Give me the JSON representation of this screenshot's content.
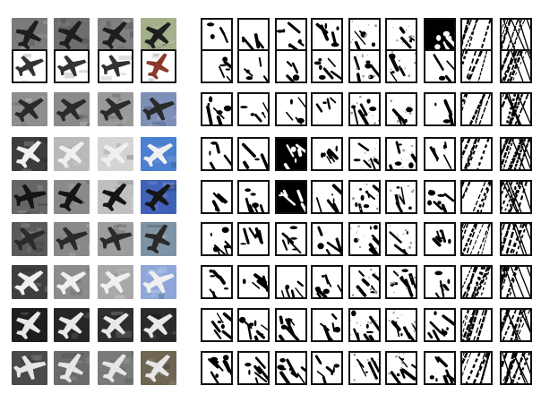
{
  "figure": {
    "rows": [
      {
        "photo_tones": [
          "#7a7a7a",
          "#6e6e6e",
          "#808080",
          "#a3b08a"
        ],
        "plane_tone": "#1e1e1e"
      },
      {
        "photo_tones": [
          "#ffffff",
          "#ffffff",
          "#ffffff",
          "#ffffff"
        ],
        "plane_tone": "#333333",
        "accent": "#8a3a2a"
      },
      {
        "photo_tones": [
          "#8e8e8e",
          "#8a8a8a",
          "#999999",
          "#7f90b8"
        ],
        "plane_tone": "#2a2a2a"
      },
      {
        "photo_tones": [
          "#3c3c3c",
          "#b9b9b9",
          "#d4d4d4",
          "#4b7fd0"
        ],
        "plane_tone": "#f0f0f0"
      },
      {
        "photo_tones": [
          "#666666",
          "#8a8a8a",
          "#bfbfbf",
          "#3f62b8"
        ],
        "plane_tone": "#151515"
      },
      {
        "photo_tones": [
          "#5a5a5a",
          "#888888",
          "#9c9c9c",
          "#7d94a6"
        ],
        "plane_tone": "#2a2a2a"
      },
      {
        "photo_tones": [
          "#3f3f3f",
          "#8c8c8c",
          "#a8a8a8",
          "#8ea7d8"
        ],
        "plane_tone": "#efefef"
      },
      {
        "photo_tones": [
          "#1e1e1e",
          "#262626",
          "#2e2e2e",
          "#2b2b2b"
        ],
        "plane_tone": "#e8e8e8"
      },
      {
        "photo_tones": [
          "#4a4a4a",
          "#6b6b6b",
          "#7a7a7a",
          "#6f6553"
        ],
        "plane_tone": "#e6e6e6"
      }
    ],
    "feature_map_tones": {
      "ink": "#000000",
      "paper": "#ffffff",
      "frame": "#111111"
    }
  }
}
